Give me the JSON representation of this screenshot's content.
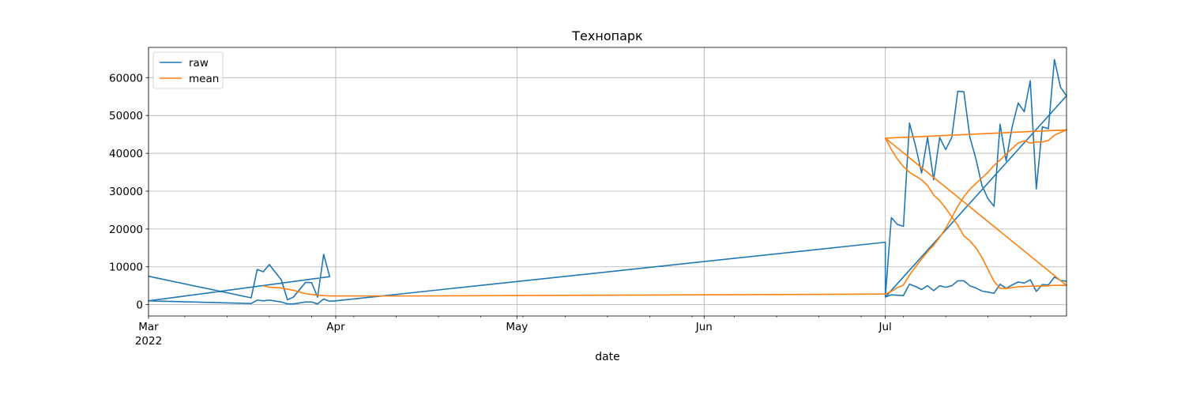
{
  "chart_data": {
    "type": "line",
    "title": "Технопарк",
    "xlabel": "date",
    "ylabel": "",
    "x_axis": {
      "type": "date",
      "range": [
        "2022-03-01",
        "2022-07-31"
      ],
      "major_ticks": [
        {
          "date": "2022-03-01",
          "label": "Mar",
          "sublabel": "2022"
        },
        {
          "date": "2022-04-01",
          "label": "Apr",
          "sublabel": ""
        },
        {
          "date": "2022-05-01",
          "label": "May",
          "sublabel": ""
        },
        {
          "date": "2022-06-01",
          "label": "Jun",
          "sublabel": ""
        },
        {
          "date": "2022-07-01",
          "label": "Jul",
          "sublabel": ""
        }
      ]
    },
    "ylim": [
      -3000,
      68000
    ],
    "yticks": [
      0,
      10000,
      20000,
      30000,
      40000,
      50000,
      60000
    ],
    "grid": true,
    "legend_position": "upper-left",
    "series": [
      {
        "name": "raw",
        "color": "#1f77b4",
        "points": [
          [
            "2022-03-01",
            7500
          ],
          [
            "2022-03-18",
            1800
          ],
          [
            "2022-03-19",
            9300
          ],
          [
            "2022-03-20",
            8700
          ],
          [
            "2022-03-21",
            10600
          ],
          [
            "2022-03-23",
            6500
          ],
          [
            "2022-03-24",
            1300
          ],
          [
            "2022-03-25",
            2000
          ],
          [
            "2022-03-27",
            5900
          ],
          [
            "2022-03-28",
            5800
          ],
          [
            "2022-03-29",
            2000
          ],
          [
            "2022-03-30",
            13300
          ],
          [
            "2022-03-31",
            7400
          ],
          [
            "2022-03-01",
            1000
          ],
          [
            "2022-03-18",
            300
          ],
          [
            "2022-03-19",
            1200
          ],
          [
            "2022-03-20",
            1000
          ],
          [
            "2022-03-21",
            1200
          ],
          [
            "2022-03-23",
            700
          ],
          [
            "2022-03-24",
            200
          ],
          [
            "2022-03-25",
            200
          ],
          [
            "2022-03-27",
            700
          ],
          [
            "2022-03-28",
            700
          ],
          [
            "2022-03-29",
            200
          ],
          [
            "2022-03-30",
            1500
          ],
          [
            "2022-03-31",
            900
          ],
          [
            "2022-04-01",
            1000
          ],
          [
            "2022-07-01",
            16500
          ],
          [
            "2022-07-01",
            2000
          ],
          [
            "2022-07-02",
            23000
          ],
          [
            "2022-07-03",
            21200
          ],
          [
            "2022-07-04",
            20700
          ],
          [
            "2022-07-05",
            48000
          ],
          [
            "2022-07-06",
            42000
          ],
          [
            "2022-07-07",
            34800
          ],
          [
            "2022-07-08",
            44200
          ],
          [
            "2022-07-09",
            33000
          ],
          [
            "2022-07-10",
            44200
          ],
          [
            "2022-07-11",
            41000
          ],
          [
            "2022-07-12",
            44200
          ],
          [
            "2022-07-13",
            56400
          ],
          [
            "2022-07-14",
            56300
          ],
          [
            "2022-07-15",
            44300
          ],
          [
            "2022-07-16",
            38500
          ],
          [
            "2022-07-17",
            31500
          ],
          [
            "2022-07-18",
            28000
          ],
          [
            "2022-07-19",
            26000
          ],
          [
            "2022-07-20",
            47700
          ],
          [
            "2022-07-21",
            38000
          ],
          [
            "2022-07-22",
            47000
          ],
          [
            "2022-07-23",
            53300
          ],
          [
            "2022-07-24",
            51000
          ],
          [
            "2022-07-25",
            59200
          ],
          [
            "2022-07-26",
            30600
          ],
          [
            "2022-07-27",
            47000
          ],
          [
            "2022-07-28",
            46500
          ],
          [
            "2022-07-29",
            64800
          ],
          [
            "2022-07-30",
            57500
          ],
          [
            "2022-07-31",
            55200
          ],
          [
            "2022-07-01",
            2000
          ],
          [
            "2022-07-02",
            2600
          ],
          [
            "2022-07-04",
            2400
          ],
          [
            "2022-07-05",
            5400
          ],
          [
            "2022-07-06",
            4800
          ],
          [
            "2022-07-07",
            4000
          ],
          [
            "2022-07-08",
            5000
          ],
          [
            "2022-07-09",
            3700
          ],
          [
            "2022-07-10",
            5000
          ],
          [
            "2022-07-11",
            4600
          ],
          [
            "2022-07-12",
            5000
          ],
          [
            "2022-07-13",
            6300
          ],
          [
            "2022-07-14",
            6300
          ],
          [
            "2022-07-15",
            5000
          ],
          [
            "2022-07-16",
            4400
          ],
          [
            "2022-07-17",
            3600
          ],
          [
            "2022-07-18",
            3300
          ],
          [
            "2022-07-19",
            3000
          ],
          [
            "2022-07-20",
            5400
          ],
          [
            "2022-07-21",
            4300
          ],
          [
            "2022-07-22",
            5200
          ],
          [
            "2022-07-23",
            6000
          ],
          [
            "2022-07-24",
            5700
          ],
          [
            "2022-07-25",
            6600
          ],
          [
            "2022-07-26",
            3500
          ],
          [
            "2022-07-27",
            5300
          ],
          [
            "2022-07-28",
            5200
          ],
          [
            "2022-07-29",
            7300
          ],
          [
            "2022-07-30",
            6400
          ],
          [
            "2022-07-31",
            6200
          ]
        ]
      },
      {
        "name": "mean",
        "color": "#ff7f0e",
        "points": [
          [
            "2022-03-20",
            5000
          ],
          [
            "2022-03-21",
            4600
          ],
          [
            "2022-03-23",
            4400
          ],
          [
            "2022-03-25",
            3800
          ],
          [
            "2022-03-27",
            2900
          ],
          [
            "2022-03-29",
            2500
          ],
          [
            "2022-03-31",
            2300
          ],
          [
            "2022-04-15",
            2300
          ],
          [
            "2022-07-01",
            2800
          ],
          [
            "2022-07-01",
            2800
          ],
          [
            "2022-07-02",
            3500
          ],
          [
            "2022-07-03",
            4500
          ],
          [
            "2022-07-04",
            5200
          ],
          [
            "2022-07-05",
            7800
          ],
          [
            "2022-07-06",
            10000
          ],
          [
            "2022-07-07",
            12000
          ],
          [
            "2022-07-08",
            14000
          ],
          [
            "2022-07-09",
            15700
          ],
          [
            "2022-07-10",
            17800
          ],
          [
            "2022-07-11",
            20200
          ],
          [
            "2022-07-12",
            23000
          ],
          [
            "2022-07-13",
            26000
          ],
          [
            "2022-07-14",
            28500
          ],
          [
            "2022-07-15",
            30500
          ],
          [
            "2022-07-16",
            32000
          ],
          [
            "2022-07-17",
            33500
          ],
          [
            "2022-07-18",
            35000
          ],
          [
            "2022-07-19",
            36800
          ],
          [
            "2022-07-20",
            38200
          ],
          [
            "2022-07-21",
            39800
          ],
          [
            "2022-07-22",
            41300
          ],
          [
            "2022-07-23",
            42700
          ],
          [
            "2022-07-24",
            43300
          ],
          [
            "2022-07-25",
            42700
          ],
          [
            "2022-07-26",
            43000
          ],
          [
            "2022-07-27",
            43000
          ],
          [
            "2022-07-28",
            43400
          ],
          [
            "2022-07-29",
            44800
          ],
          [
            "2022-07-30",
            45500
          ],
          [
            "2022-07-31",
            46200
          ],
          [
            "2022-07-01",
            44000
          ],
          [
            "2022-07-02",
            41000
          ],
          [
            "2022-07-03",
            38500
          ],
          [
            "2022-07-04",
            36500
          ],
          [
            "2022-07-05",
            35000
          ],
          [
            "2022-07-06",
            34000
          ],
          [
            "2022-07-07",
            33000
          ],
          [
            "2022-07-08",
            31500
          ],
          [
            "2022-07-09",
            29000
          ],
          [
            "2022-07-10",
            27500
          ],
          [
            "2022-07-11",
            25500
          ],
          [
            "2022-07-12",
            23200
          ],
          [
            "2022-07-13",
            21000
          ],
          [
            "2022-07-14",
            18200
          ],
          [
            "2022-07-15",
            16900
          ],
          [
            "2022-07-16",
            15000
          ],
          [
            "2022-07-17",
            12500
          ],
          [
            "2022-07-18",
            9300
          ],
          [
            "2022-07-19",
            6200
          ],
          [
            "2022-07-20",
            4300
          ],
          [
            "2022-07-21",
            4300
          ],
          [
            "2022-07-23",
            4700
          ],
          [
            "2022-07-25",
            4900
          ],
          [
            "2022-07-27",
            4900
          ],
          [
            "2022-07-29",
            5100
          ],
          [
            "2022-07-31",
            5100
          ],
          [
            "2022-07-01",
            44000
          ],
          [
            "2022-07-31",
            46200
          ]
        ]
      }
    ]
  }
}
